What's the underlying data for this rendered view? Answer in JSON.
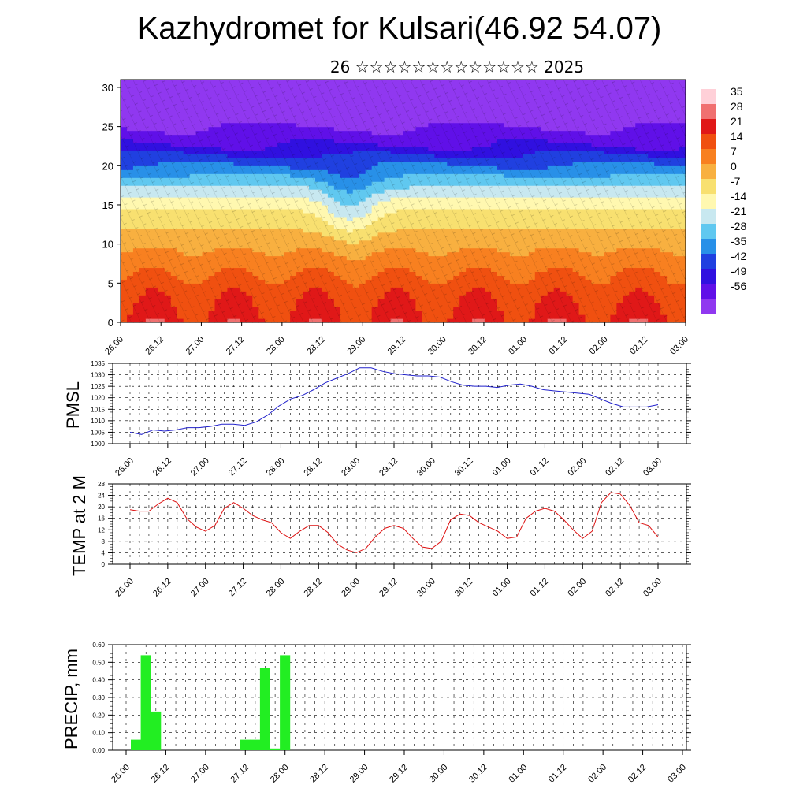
{
  "title": "Kazhydromet for Kulsari(46.92 54.07)",
  "subtitle": "26 ☆☆☆☆☆☆☆☆☆☆☆☆☆ 2025",
  "colors": {
    "pmsl_line": "#2222cc",
    "temp_line": "#dd1111",
    "precip_bar": "#22ee22",
    "grid": "#000000"
  },
  "chart_data": [
    {
      "type": "heatmap",
      "name": "cross-section",
      "xlabel": "",
      "ylabel": "",
      "x_ticks": [
        "26.00",
        "26.12",
        "27.00",
        "27.12",
        "28.00",
        "28.12",
        "29.00",
        "29.12",
        "30.00",
        "30.12",
        "01.00",
        "01.12",
        "02.00",
        "02.12",
        "03.00"
      ],
      "y_ticks": [
        0,
        5,
        10,
        15,
        20,
        25,
        30
      ],
      "ylim": [
        0,
        31
      ],
      "colorbar_labels": [
        "35",
        "28",
        "21",
        "14",
        "7",
        "0",
        "-7",
        "-14",
        "-21",
        "-28",
        "-35",
        "-42",
        "-49",
        "-56"
      ],
      "colorbar_colors": [
        "#ffd0d8",
        "#f07070",
        "#e01818",
        "#f05010",
        "#f88020",
        "#f8b040",
        "#f8e070",
        "#fff8b0",
        "#c8e8f0",
        "#60c8f0",
        "#2890e8",
        "#2040e0",
        "#3010e0",
        "#6010e8",
        "#9038f0"
      ],
      "vertical_profile": [
        {
          "height": 0,
          "temperature": 21
        },
        {
          "height": 5,
          "temperature": 14
        },
        {
          "height": 10,
          "temperature": 3
        },
        {
          "height": 15,
          "temperature": -10
        },
        {
          "height": 20,
          "temperature": -35
        },
        {
          "height": 23,
          "temperature": -50
        },
        {
          "height": 26,
          "temperature": -58
        },
        {
          "height": 31,
          "temperature": -60
        }
      ]
    },
    {
      "type": "line",
      "name": "PMSL",
      "ylabel": "PMSL",
      "ylim": [
        1000,
        1035
      ],
      "y_ticks": [
        1000,
        1005,
        1010,
        1015,
        1020,
        1025,
        1030,
        1035
      ],
      "x_ticks": [
        "26.00",
        "26.12",
        "27.00",
        "27.12",
        "28.00",
        "28.12",
        "29.00",
        "29.12",
        "30.00",
        "30.12",
        "01.00",
        "01.12",
        "02.00",
        "02.12",
        "03.00"
      ],
      "values": [
        1005,
        1004,
        1006,
        1005.5,
        1006,
        1007,
        1007,
        1007.5,
        1008.5,
        1008.5,
        1008,
        1009.5,
        1012.5,
        1016.5,
        1019.5,
        1021,
        1023.5,
        1026.5,
        1028.5,
        1030.5,
        1033,
        1033,
        1031.5,
        1030.5,
        1030,
        1029.5,
        1029.5,
        1029,
        1027,
        1025.5,
        1025,
        1025,
        1024.5,
        1025.5,
        1026,
        1025,
        1023.5,
        1023,
        1022.5,
        1022,
        1021.5,
        1019.5,
        1017.5,
        1016,
        1016,
        1016,
        1017
      ]
    },
    {
      "type": "line",
      "name": "TEMP at 2 M",
      "ylabel": "TEMP at 2 M",
      "ylim": [
        0,
        28
      ],
      "y_ticks": [
        0,
        4,
        8,
        12,
        16,
        20,
        24,
        28
      ],
      "x_ticks": [
        "26.00",
        "26.12",
        "27.00",
        "27.12",
        "28.00",
        "28.12",
        "29.00",
        "29.12",
        "30.00",
        "30.12",
        "01.00",
        "01.12",
        "02.00",
        "02.12",
        "03.00"
      ],
      "values": [
        19,
        18.5,
        18.5,
        21,
        23,
        21.5,
        16,
        13,
        11.5,
        13.5,
        19.5,
        21.5,
        19.5,
        17,
        15.5,
        14.5,
        11,
        9,
        11.5,
        13.5,
        13.5,
        11,
        7,
        5,
        4,
        5.5,
        9.5,
        12.5,
        13.5,
        12.5,
        9,
        6,
        5.5,
        8,
        15.5,
        17.5,
        17,
        14.5,
        13,
        11.5,
        9,
        9.5,
        16,
        18.5,
        19.5,
        18.5,
        15.5,
        12,
        9,
        11.5,
        21.5,
        25,
        24.5,
        20.5,
        14.5,
        13.5,
        9.5
      ]
    },
    {
      "type": "bar",
      "name": "PRECIP, mm",
      "ylabel": "PRECIP, mm",
      "ylim": [
        0,
        0.6
      ],
      "y_ticks": [
        "0.00",
        "0.10",
        "0.20",
        "0.30",
        "0.40",
        "0.50",
        "0.60"
      ],
      "x_ticks": [
        "26.00",
        "26.12",
        "27.00",
        "27.12",
        "28.00",
        "28.12",
        "29.00",
        "29.12",
        "30.00",
        "30.12",
        "01.00",
        "01.12",
        "02.00",
        "02.12",
        "03.00"
      ],
      "values": [
        0.06,
        0.54,
        0.22,
        0,
        0,
        0,
        0,
        0,
        0,
        0,
        0,
        0.06,
        0.06,
        0.47,
        0.01,
        0.54,
        0,
        0,
        0,
        0,
        0,
        0,
        0,
        0,
        0,
        0,
        0,
        0,
        0,
        0,
        0,
        0,
        0,
        0,
        0,
        0,
        0,
        0,
        0,
        0,
        0,
        0,
        0,
        0,
        0,
        0,
        0,
        0,
        0,
        0,
        0,
        0,
        0,
        0,
        0,
        0,
        0
      ]
    }
  ]
}
